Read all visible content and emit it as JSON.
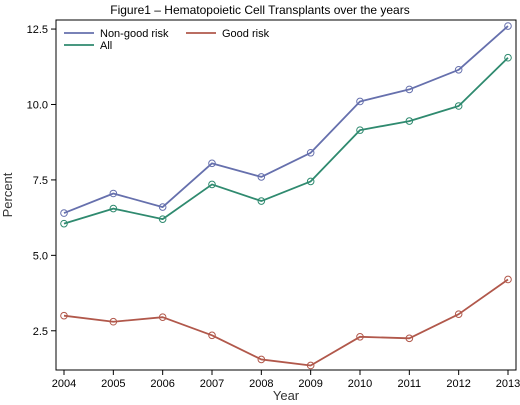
{
  "chart_data": {
    "type": "line",
    "title": "Figure1 – Hematopoietic Cell Transplants over the years",
    "xlabel": "Year",
    "ylabel": "Percent",
    "x": [
      2004,
      2005,
      2006,
      2007,
      2008,
      2009,
      2010,
      2011,
      2012,
      2013
    ],
    "x_tick_labels": [
      "2004",
      "2005",
      "2006",
      "2007",
      "2008",
      "2009",
      "2010",
      "2011",
      "2012",
      "2013"
    ],
    "xlim": [
      2004,
      2013
    ],
    "ylim": [
      1.2,
      12.8
    ],
    "y_ticks": [
      2.5,
      5.0,
      7.5,
      10.0,
      12.5
    ],
    "y_tick_labels": [
      "2.5",
      "5.0",
      "7.5",
      "10.0",
      "12.5"
    ],
    "grid": false,
    "legend_position": "top-left",
    "series": [
      {
        "name": "Non-good risk",
        "color": "#6670ad",
        "values": [
          6.4,
          7.05,
          6.6,
          8.05,
          7.6,
          8.4,
          10.1,
          10.5,
          11.15,
          12.6
        ]
      },
      {
        "name": "Good risk",
        "color": "#b1584b",
        "values": [
          3.0,
          2.8,
          2.95,
          2.35,
          1.55,
          1.35,
          2.3,
          2.25,
          3.05,
          4.2
        ]
      },
      {
        "name": "All",
        "color": "#2f8a6f",
        "values": [
          6.05,
          6.55,
          6.2,
          7.35,
          6.8,
          7.45,
          9.15,
          9.45,
          9.95,
          11.55
        ]
      }
    ]
  }
}
